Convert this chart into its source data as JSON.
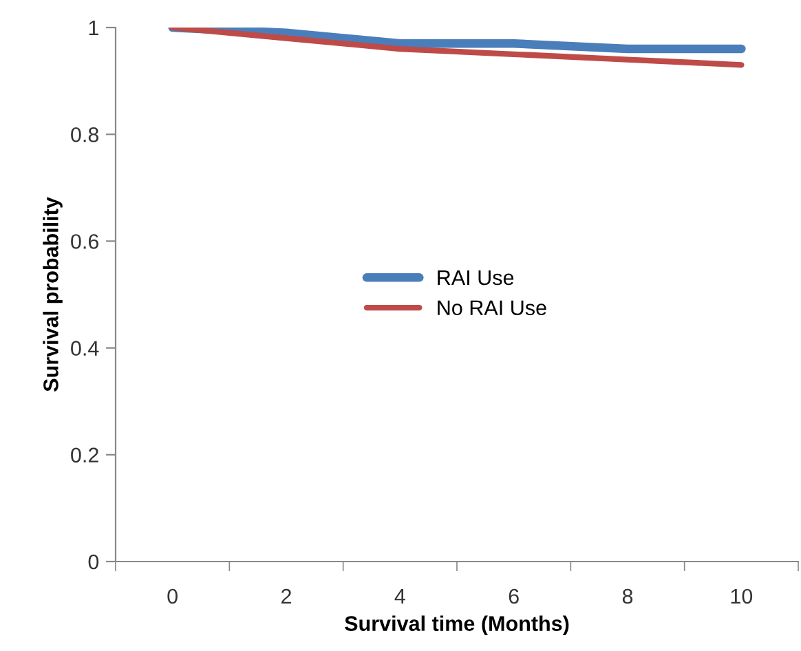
{
  "chart_data": {
    "type": "line",
    "xlabel": "Survival time (Months)",
    "ylabel": "Survival probability",
    "categories": [
      "0",
      "2",
      "4",
      "6",
      "8",
      "10"
    ],
    "series": [
      {
        "name": "RAI Use",
        "color": "#4a7ebb",
        "values": [
          1,
          0.99,
          0.97,
          0.97,
          0.96,
          0.96
        ]
      },
      {
        "name": "No RAI Use",
        "color": "#be4b48",
        "values": [
          1,
          0.98,
          0.96,
          0.95,
          0.94,
          0.93
        ]
      }
    ],
    "ylim": [
      0,
      1
    ],
    "yticks": [
      0,
      0.2,
      0.4,
      0.6,
      0.8,
      1
    ],
    "grid": false,
    "legend": "center",
    "marker": "none",
    "line_style": "solid"
  }
}
